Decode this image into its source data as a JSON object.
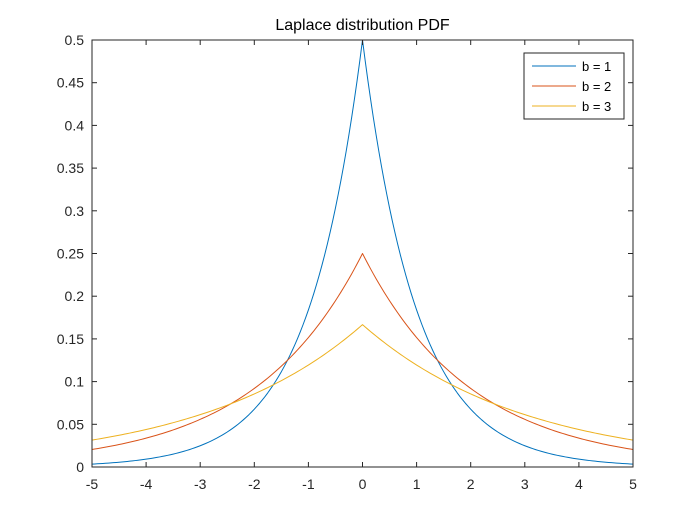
{
  "chart_data": {
    "type": "line",
    "title": "Laplace distribution PDF",
    "xlabel": "",
    "ylabel": "",
    "xlim": [
      -5,
      5
    ],
    "ylim": [
      0,
      0.5
    ],
    "x_ticks": [
      -5,
      -4,
      -3,
      -2,
      -1,
      0,
      1,
      2,
      3,
      4,
      5
    ],
    "y_ticks": [
      0,
      0.05,
      0.1,
      0.15,
      0.2,
      0.25,
      0.3,
      0.35,
      0.4,
      0.45,
      0.5
    ],
    "x_tick_labels": [
      "-5",
      "-4",
      "-3",
      "-2",
      "-1",
      "0",
      "1",
      "2",
      "3",
      "4",
      "5"
    ],
    "y_tick_labels": [
      "0",
      "0.05",
      "0.1",
      "0.15",
      "0.2",
      "0.25",
      "0.3",
      "0.35",
      "0.4",
      "0.45",
      "0.5"
    ],
    "grid": false,
    "legend_position": "top-right",
    "x": [
      -5,
      -4.5,
      -4,
      -3.5,
      -3,
      -2.5,
      -2,
      -1.5,
      -1,
      -0.5,
      0,
      0.5,
      1,
      1.5,
      2,
      2.5,
      3,
      3.5,
      4,
      4.5,
      5
    ],
    "series": [
      {
        "name": "b = 1",
        "color": "#0072BD",
        "values": [
          0.0034,
          0.0056,
          0.0092,
          0.0151,
          0.0249,
          0.041,
          0.0677,
          0.1116,
          0.1839,
          0.3033,
          0.5,
          0.3033,
          0.1839,
          0.1116,
          0.0677,
          0.041,
          0.0249,
          0.0151,
          0.0092,
          0.0056,
          0.0034
        ]
      },
      {
        "name": "b = 2",
        "color": "#D95319",
        "values": [
          0.0205,
          0.0263,
          0.0338,
          0.0434,
          0.0558,
          0.0716,
          0.092,
          0.1181,
          0.1516,
          0.1947,
          0.25,
          0.1947,
          0.1516,
          0.1181,
          0.092,
          0.0716,
          0.0558,
          0.0434,
          0.0338,
          0.0263,
          0.0205
        ]
      },
      {
        "name": "b = 3",
        "color": "#EDB120",
        "values": [
          0.0315,
          0.0372,
          0.0439,
          0.0519,
          0.0613,
          0.0724,
          0.0856,
          0.1011,
          0.1194,
          0.1411,
          0.1667,
          0.1411,
          0.1194,
          0.1011,
          0.0856,
          0.0724,
          0.0613,
          0.0519,
          0.0439,
          0.0372,
          0.0315
        ]
      }
    ]
  }
}
